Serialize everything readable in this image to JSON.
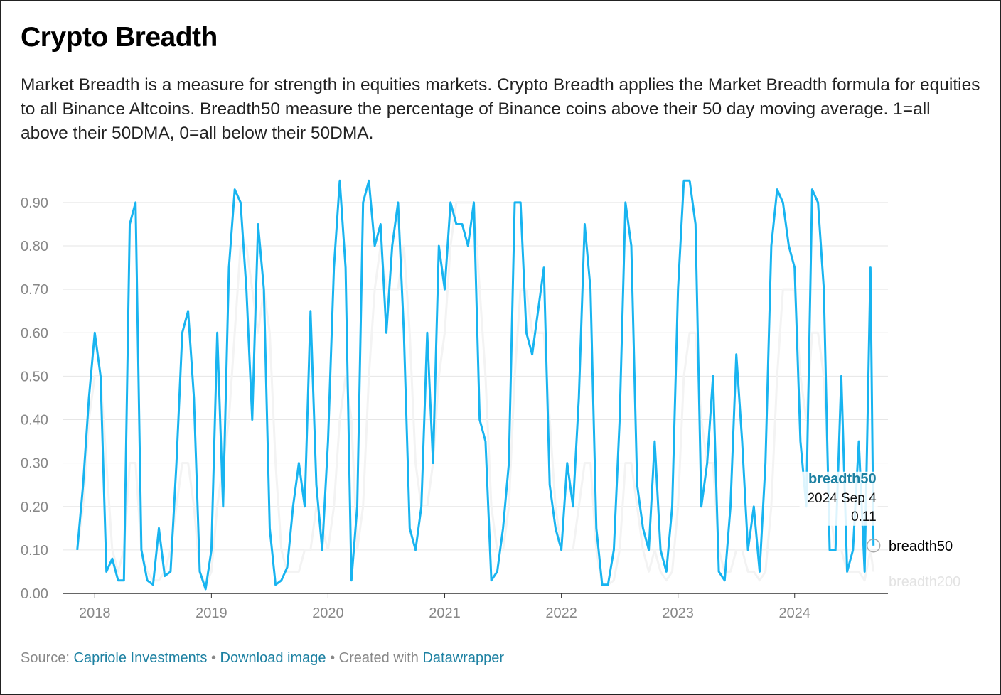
{
  "chart_data": {
    "type": "line",
    "title": "Crypto Breadth",
    "subtitle": "Market Breadth is a measure for strength in equities markets. Crypto Breadth applies the Market Breadth formula for equities to all Binance Altcoins. Breadth50 measure the percentage of Binance coins above their 50 day moving average. 1=all above their 50DMA, 0=all below their 50DMA.",
    "x": [
      2017.85,
      2017.9,
      2017.95,
      2018.0,
      2018.05,
      2018.1,
      2018.15,
      2018.2,
      2018.25,
      2018.3,
      2018.35,
      2018.4,
      2018.45,
      2018.5,
      2018.55,
      2018.6,
      2018.65,
      2018.7,
      2018.75,
      2018.8,
      2018.85,
      2018.9,
      2018.95,
      2019.0,
      2019.05,
      2019.1,
      2019.15,
      2019.2,
      2019.25,
      2019.3,
      2019.35,
      2019.4,
      2019.45,
      2019.5,
      2019.55,
      2019.6,
      2019.65,
      2019.7,
      2019.75,
      2019.8,
      2019.85,
      2019.9,
      2019.95,
      2020.0,
      2020.05,
      2020.1,
      2020.15,
      2020.2,
      2020.25,
      2020.3,
      2020.35,
      2020.4,
      2020.45,
      2020.5,
      2020.55,
      2020.6,
      2020.65,
      2020.7,
      2020.75,
      2020.8,
      2020.85,
      2020.9,
      2020.95,
      2021.0,
      2021.05,
      2021.1,
      2021.15,
      2021.2,
      2021.25,
      2021.3,
      2021.35,
      2021.4,
      2021.45,
      2021.5,
      2021.55,
      2021.6,
      2021.65,
      2021.7,
      2021.75,
      2021.8,
      2021.85,
      2021.9,
      2021.95,
      2022.0,
      2022.05,
      2022.1,
      2022.15,
      2022.2,
      2022.25,
      2022.3,
      2022.35,
      2022.4,
      2022.45,
      2022.5,
      2022.55,
      2022.6,
      2022.65,
      2022.7,
      2022.75,
      2022.8,
      2022.85,
      2022.9,
      2022.95,
      2023.0,
      2023.05,
      2023.1,
      2023.15,
      2023.2,
      2023.25,
      2023.3,
      2023.35,
      2023.4,
      2023.45,
      2023.5,
      2023.55,
      2023.6,
      2023.65,
      2023.7,
      2023.75,
      2023.8,
      2023.85,
      2023.9,
      2023.95,
      2024.0,
      2024.05,
      2024.1,
      2024.15,
      2024.2,
      2024.25,
      2024.3,
      2024.35,
      2024.4,
      2024.45,
      2024.5,
      2024.55,
      2024.6,
      2024.65,
      2024.676
    ],
    "series": [
      {
        "name": "breadth50",
        "color": "#18b4f0",
        "label_color": "#000000",
        "values": [
          0.1,
          0.25,
          0.45,
          0.6,
          0.5,
          0.05,
          0.08,
          0.03,
          0.03,
          0.85,
          0.9,
          0.1,
          0.03,
          0.02,
          0.15,
          0.04,
          0.05,
          0.3,
          0.6,
          0.65,
          0.45,
          0.05,
          0.01,
          0.1,
          0.6,
          0.2,
          0.75,
          0.93,
          0.9,
          0.7,
          0.4,
          0.85,
          0.7,
          0.15,
          0.02,
          0.03,
          0.06,
          0.2,
          0.3,
          0.2,
          0.65,
          0.25,
          0.1,
          0.35,
          0.75,
          0.95,
          0.75,
          0.03,
          0.2,
          0.9,
          0.95,
          0.8,
          0.85,
          0.6,
          0.8,
          0.9,
          0.6,
          0.15,
          0.1,
          0.2,
          0.6,
          0.3,
          0.8,
          0.7,
          0.9,
          0.85,
          0.85,
          0.8,
          0.9,
          0.4,
          0.35,
          0.03,
          0.05,
          0.15,
          0.3,
          0.9,
          0.9,
          0.6,
          0.55,
          0.65,
          0.75,
          0.25,
          0.15,
          0.1,
          0.3,
          0.2,
          0.45,
          0.85,
          0.7,
          0.15,
          0.02,
          0.02,
          0.1,
          0.4,
          0.9,
          0.8,
          0.25,
          0.15,
          0.1,
          0.35,
          0.1,
          0.05,
          0.2,
          0.7,
          0.95,
          0.95,
          0.85,
          0.2,
          0.3,
          0.5,
          0.05,
          0.03,
          0.2,
          0.55,
          0.35,
          0.1,
          0.2,
          0.05,
          0.3,
          0.8,
          0.93,
          0.9,
          0.8,
          0.75,
          0.35,
          0.2,
          0.93,
          0.9,
          0.7,
          0.1,
          0.1,
          0.5,
          0.05,
          0.1,
          0.35,
          0.05,
          0.75,
          0.11
        ]
      },
      {
        "name": "breadth200",
        "color": "#f3f3f3",
        "label_color": "#e3e3e3",
        "values": [
          0.1,
          0.2,
          0.4,
          0.5,
          0.5,
          0.3,
          0.1,
          0.05,
          0.1,
          0.3,
          0.3,
          0.1,
          0.05,
          0.03,
          0.03,
          0.05,
          0.1,
          0.2,
          0.3,
          0.3,
          0.2,
          0.05,
          0.02,
          0.05,
          0.2,
          0.3,
          0.4,
          0.6,
          0.8,
          0.8,
          0.7,
          0.6,
          0.7,
          0.6,
          0.3,
          0.1,
          0.05,
          0.05,
          0.05,
          0.1,
          0.1,
          0.2,
          0.15,
          0.1,
          0.2,
          0.4,
          0.5,
          0.4,
          0.1,
          0.2,
          0.5,
          0.7,
          0.8,
          0.7,
          0.7,
          0.7,
          0.8,
          0.6,
          0.3,
          0.2,
          0.2,
          0.3,
          0.5,
          0.6,
          0.8,
          0.9,
          0.9,
          0.9,
          0.9,
          0.7,
          0.5,
          0.2,
          0.1,
          0.1,
          0.2,
          0.5,
          0.7,
          0.7,
          0.6,
          0.6,
          0.6,
          0.4,
          0.2,
          0.1,
          0.1,
          0.1,
          0.2,
          0.3,
          0.3,
          0.1,
          0.02,
          0.02,
          0.03,
          0.1,
          0.3,
          0.3,
          0.2,
          0.1,
          0.05,
          0.1,
          0.05,
          0.03,
          0.05,
          0.2,
          0.5,
          0.6,
          0.6,
          0.4,
          0.3,
          0.3,
          0.1,
          0.05,
          0.05,
          0.1,
          0.1,
          0.05,
          0.05,
          0.03,
          0.05,
          0.2,
          0.5,
          0.7,
          0.7,
          0.7,
          0.5,
          0.4,
          0.6,
          0.6,
          0.5,
          0.2,
          0.1,
          0.1,
          0.05,
          0.05,
          0.05,
          0.03,
          0.1,
          0.05
        ]
      }
    ],
    "xlim": [
      2017.73,
      2024.8
    ],
    "xticks": [
      2018,
      2019,
      2020,
      2021,
      2022,
      2023,
      2024
    ],
    "ylim": [
      0,
      0.98
    ],
    "yticks": [
      {
        "value": 0,
        "label": "0.00"
      },
      {
        "value": 0.1,
        "label": "0.10"
      },
      {
        "value": 0.2,
        "label": "0.20"
      },
      {
        "value": 0.3,
        "label": "0.30"
      },
      {
        "value": 0.4,
        "label": "0.40"
      },
      {
        "value": 0.5,
        "label": "0.50"
      },
      {
        "value": 0.6,
        "label": "0.60"
      },
      {
        "value": 0.7,
        "label": "0.70"
      },
      {
        "value": 0.8,
        "label": "0.80"
      },
      {
        "value": 0.9,
        "label": "0.90"
      }
    ],
    "grid": true,
    "tooltip": {
      "series": "breadth50",
      "date": "2024 Sep 4",
      "value": 0.11
    },
    "footer": {
      "source_label": "Source:",
      "source": "Capriole Investments",
      "download": "Download image",
      "created": "Created with",
      "tool": "Datawrapper"
    }
  }
}
